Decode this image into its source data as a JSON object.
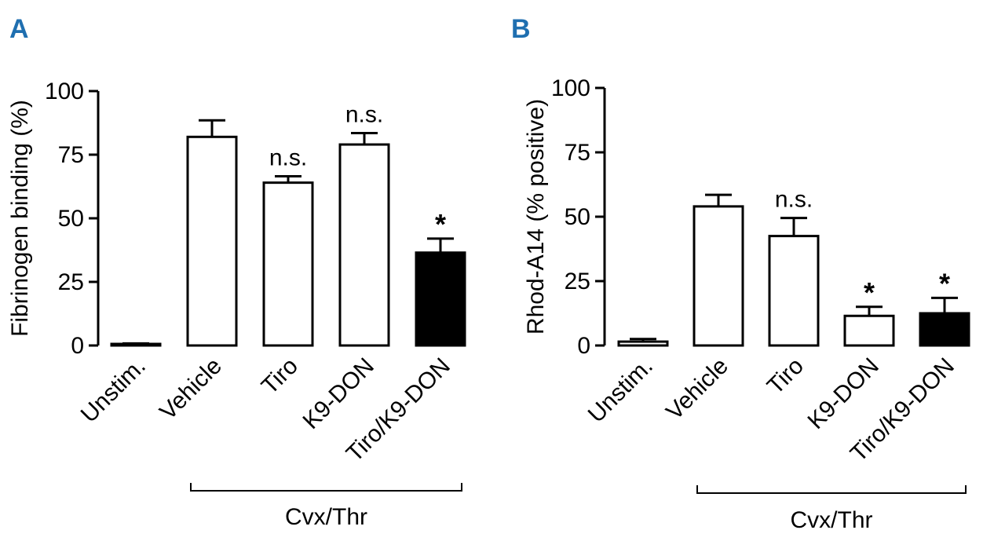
{
  "chart_data": [
    {
      "panel": "A",
      "type": "bar",
      "ylabel": "Fibrinogen binding (%)",
      "ylim": [
        0,
        100
      ],
      "yticks": [
        "0",
        "25",
        "50",
        "75",
        "100"
      ],
      "categories": [
        "Unstim.",
        "Vehicle",
        "Tiro",
        "K9-DON",
        "Tiro/K9-DON"
      ],
      "values": [
        0.5,
        82,
        64,
        79,
        36.5
      ],
      "errors": [
        0.3,
        6.5,
        2.5,
        4.5,
        5.5
      ],
      "fill_colors": [
        "#ffffff",
        "#ffffff",
        "#ffffff",
        "#ffffff",
        "#000000"
      ],
      "annotations": [
        "",
        "",
        "n.s.",
        "n.s.",
        "*"
      ],
      "group_label": "Cvx/Thr",
      "group_span": [
        1,
        4
      ]
    },
    {
      "panel": "B",
      "type": "bar",
      "ylabel": "Rhod-A14 (% positive)",
      "ylim": [
        0,
        100
      ],
      "yticks": [
        "0",
        "25",
        "50",
        "75",
        "100"
      ],
      "categories": [
        "Unstim.",
        "Vehicle",
        "Tiro",
        "K9-DON",
        "Tiro/K9-DON"
      ],
      "values": [
        1.5,
        54,
        42.5,
        11.5,
        12.5
      ],
      "errors": [
        1.0,
        4.5,
        7.0,
        3.5,
        6.0
      ],
      "fill_colors": [
        "#ffffff",
        "#ffffff",
        "#ffffff",
        "#ffffff",
        "#000000"
      ],
      "annotations": [
        "",
        "",
        "n.s.",
        "*",
        "*"
      ],
      "group_label": "Cvx/Thr",
      "group_span": [
        1,
        4
      ]
    }
  ]
}
